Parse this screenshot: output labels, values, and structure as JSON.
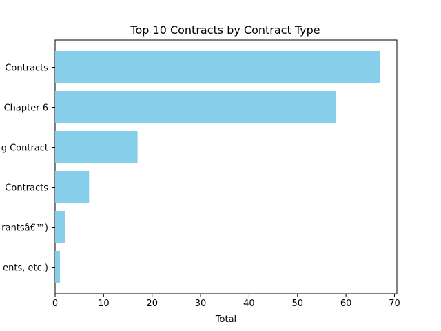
{
  "chart_data": {
    "type": "bar",
    "orientation": "horizontal",
    "title": "Top 10 Contracts by Contract Type",
    "xlabel": "Total",
    "ylabel": "",
    "xlim": [
      0,
      70.5
    ],
    "x_ticks": [
      0,
      10,
      20,
      30,
      40,
      50,
      60,
      70
    ],
    "categories_visible": [
      "Contracts",
      "Chapter 6",
      "g Contract",
      "Contracts",
      "rantsâ€™)",
      "ents, etc.)"
    ],
    "values": [
      67,
      58,
      17,
      7,
      2,
      1
    ],
    "grid": false,
    "legend": "none",
    "bar_color": "#87CEEB"
  }
}
